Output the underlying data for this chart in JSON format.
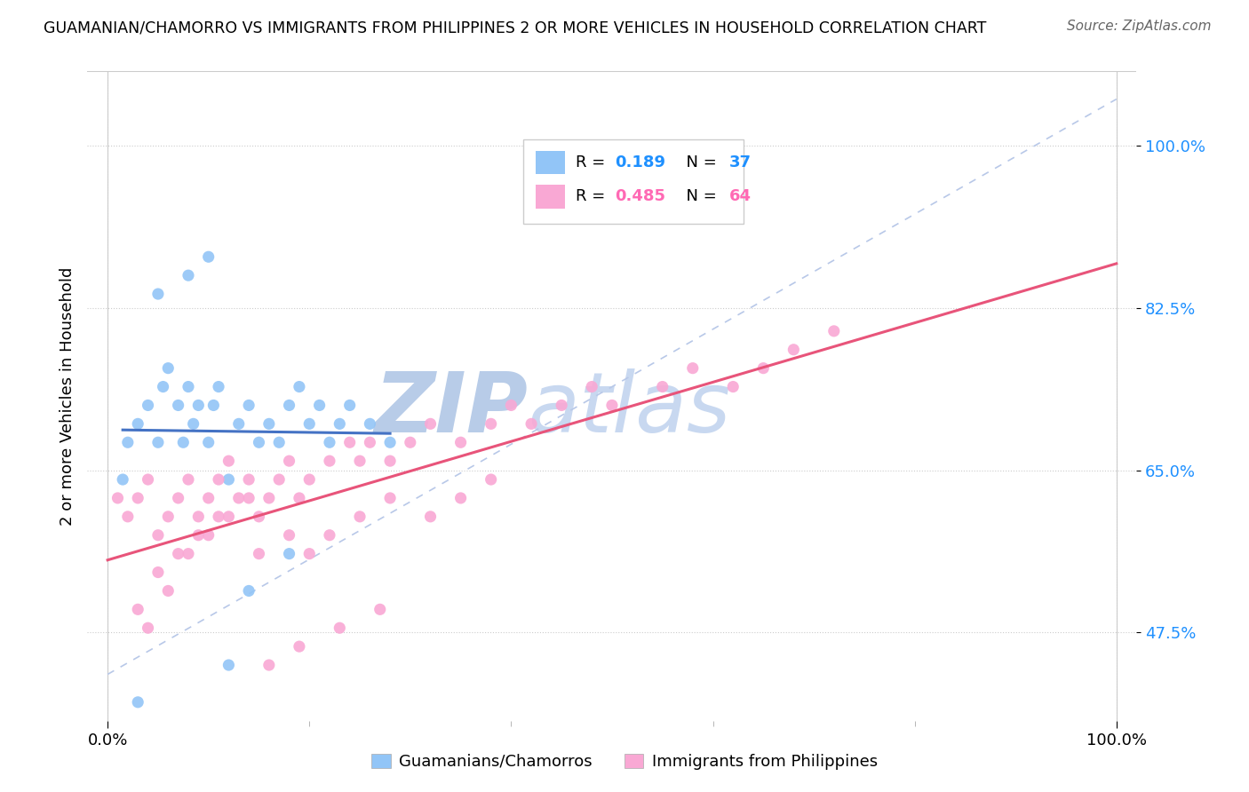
{
  "title": "GUAMANIAN/CHAMORRO VS IMMIGRANTS FROM PHILIPPINES 2 OR MORE VEHICLES IN HOUSEHOLD CORRELATION CHART",
  "source": "Source: ZipAtlas.com",
  "ylabel": "2 or more Vehicles in Household",
  "legend_blue_r": "0.189",
  "legend_blue_n": "37",
  "legend_pink_r": "0.485",
  "legend_pink_n": "64",
  "blue_color": "#92C5F7",
  "pink_color": "#F9A8D4",
  "blue_line_color": "#4472C4",
  "pink_line_color": "#E8547A",
  "blue_dash_color": "#B8C8E8",
  "watermark": "ZIPatlas",
  "watermark_color_zip": "#B8CCE8",
  "watermark_color_atlas": "#C8D8F0",
  "r_blue_color": "#1E90FF",
  "n_blue_color": "#1E90FF",
  "r_pink_color": "#FF69B4",
  "n_pink_color": "#FF69B4",
  "ytick_color": "#1E90FF",
  "ylim_low": 38,
  "ylim_high": 108,
  "xlim_low": -2,
  "xlim_high": 102,
  "yticks": [
    47.5,
    65.0,
    82.5,
    100.0
  ],
  "yticklabels": [
    "47.5%",
    "65.0%",
    "82.5%",
    "100.0%"
  ],
  "xticks": [
    0,
    100
  ],
  "xticklabels": [
    "0.0%",
    "100.0%"
  ],
  "blue_x": [
    1.5,
    2.0,
    3.0,
    4.0,
    5.0,
    5.5,
    6.0,
    7.0,
    7.5,
    8.0,
    8.5,
    9.0,
    10.0,
    10.5,
    11.0,
    12.0,
    13.0,
    14.0,
    15.0,
    16.0,
    17.0,
    18.0,
    19.0,
    20.0,
    21.0,
    22.0,
    23.0,
    24.0,
    26.0,
    28.0,
    12.0,
    14.0,
    18.0,
    5.0,
    8.0,
    10.0,
    3.0
  ],
  "blue_y": [
    64.0,
    68.0,
    70.0,
    72.0,
    68.0,
    74.0,
    76.0,
    72.0,
    68.0,
    74.0,
    70.0,
    72.0,
    68.0,
    72.0,
    74.0,
    64.0,
    70.0,
    72.0,
    68.0,
    70.0,
    68.0,
    72.0,
    74.0,
    70.0,
    72.0,
    68.0,
    70.0,
    72.0,
    70.0,
    68.0,
    44.0,
    52.0,
    56.0,
    84.0,
    86.0,
    88.0,
    40.0
  ],
  "pink_x": [
    1.0,
    2.0,
    3.0,
    4.0,
    5.0,
    6.0,
    7.0,
    8.0,
    9.0,
    10.0,
    11.0,
    12.0,
    13.0,
    14.0,
    15.0,
    16.0,
    17.0,
    18.0,
    19.0,
    20.0,
    22.0,
    24.0,
    25.0,
    26.0,
    28.0,
    30.0,
    32.0,
    35.0,
    38.0,
    40.0,
    42.0,
    45.0,
    48.0,
    50.0,
    55.0,
    58.0,
    62.0,
    65.0,
    68.0,
    72.0,
    15.0,
    18.0,
    20.0,
    22.0,
    25.0,
    28.0,
    8.0,
    10.0,
    12.0,
    14.0,
    32.0,
    35.0,
    38.0,
    5.0,
    6.0,
    3.0,
    4.0,
    7.0,
    9.0,
    11.0,
    16.0,
    19.0,
    23.0,
    27.0
  ],
  "pink_y": [
    62.0,
    60.0,
    62.0,
    64.0,
    58.0,
    60.0,
    62.0,
    64.0,
    60.0,
    62.0,
    64.0,
    66.0,
    62.0,
    64.0,
    60.0,
    62.0,
    64.0,
    66.0,
    62.0,
    64.0,
    66.0,
    68.0,
    66.0,
    68.0,
    66.0,
    68.0,
    70.0,
    68.0,
    70.0,
    72.0,
    70.0,
    72.0,
    74.0,
    72.0,
    74.0,
    76.0,
    74.0,
    76.0,
    78.0,
    80.0,
    56.0,
    58.0,
    56.0,
    58.0,
    60.0,
    62.0,
    56.0,
    58.0,
    60.0,
    62.0,
    60.0,
    62.0,
    64.0,
    54.0,
    52.0,
    50.0,
    48.0,
    56.0,
    58.0,
    60.0,
    44.0,
    46.0,
    48.0,
    50.0
  ]
}
